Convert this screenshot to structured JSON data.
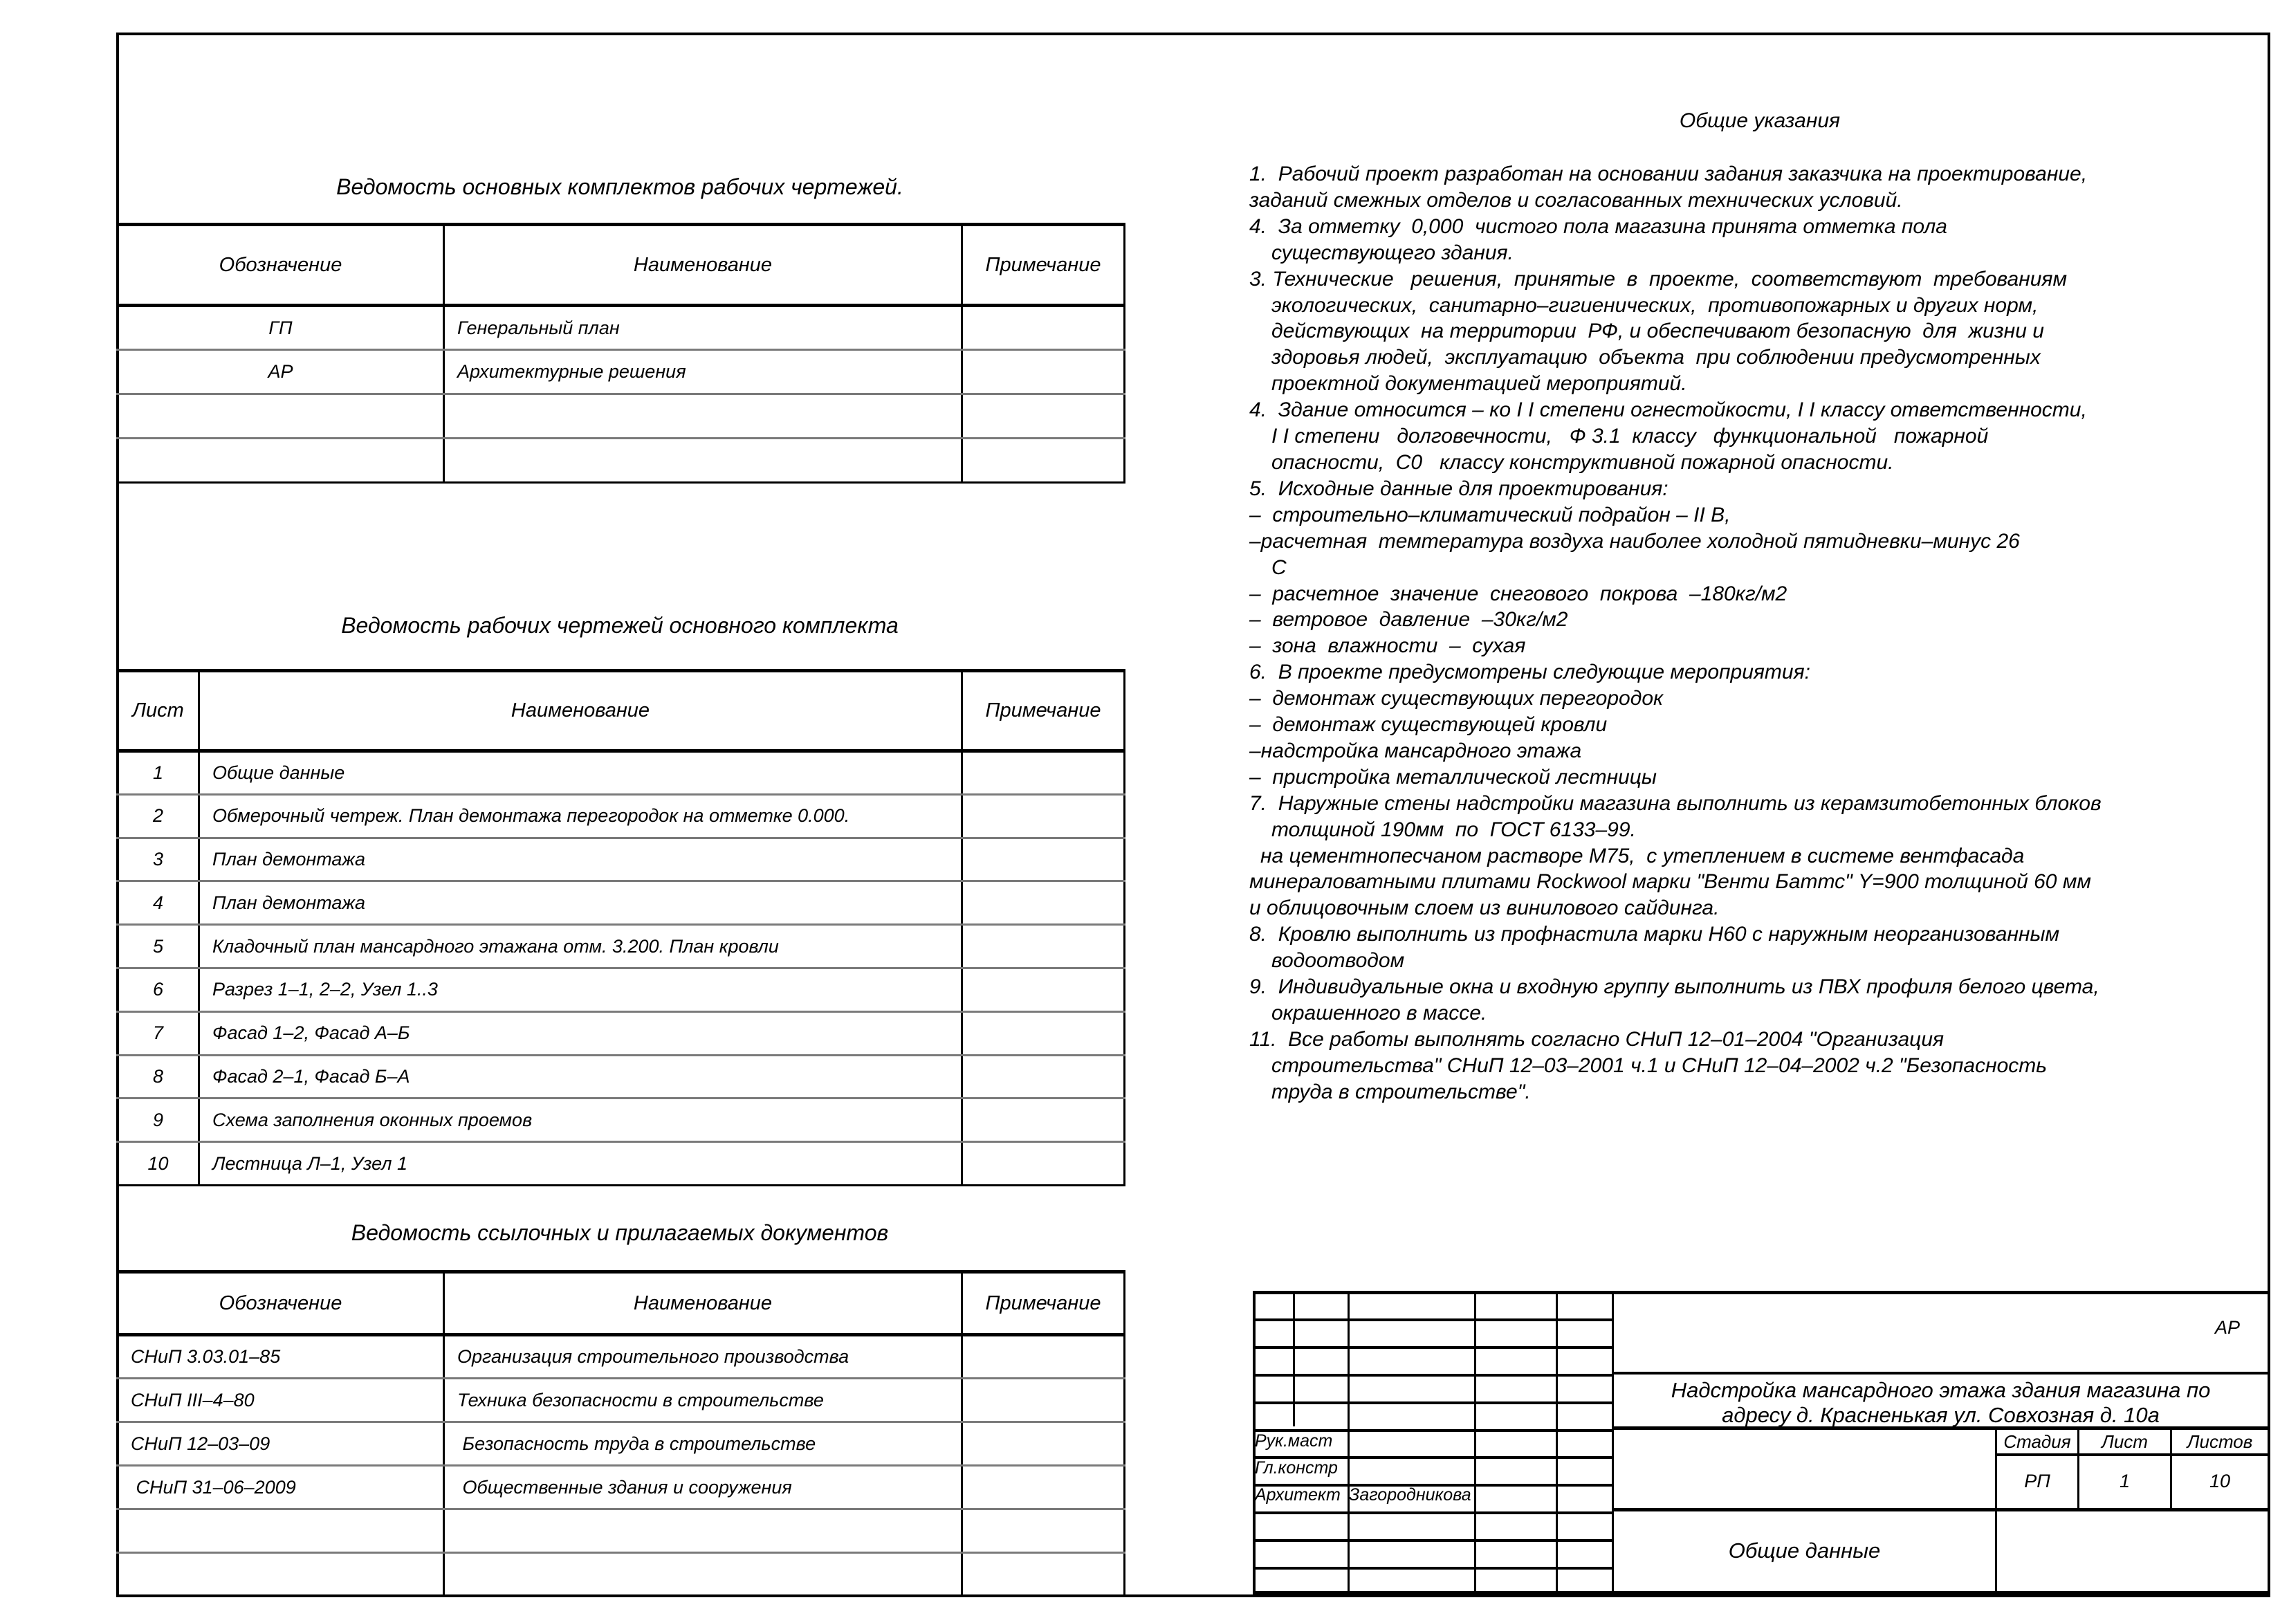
{
  "sheet_set_list": {
    "title": "Ведомость основных комплектов рабочих чертежей.",
    "headers": [
      "Обозначение",
      "Наименование",
      "Примечание"
    ],
    "rows": [
      [
        "ГП",
        "Генеральный план",
        ""
      ],
      [
        "АР",
        "Архитектурные решения",
        ""
      ],
      [
        "",
        "",
        ""
      ],
      [
        "",
        "",
        ""
      ]
    ]
  },
  "drawings_list": {
    "title": "Ведомость рабочих чертежей основного комплекта",
    "headers": [
      "Лист",
      "Наименование",
      "Примечание"
    ],
    "rows": [
      [
        "1",
        "Общие данные",
        ""
      ],
      [
        "2",
        "Обмерочный четреж. План демонтажа перегородок на отметке 0.000.",
        ""
      ],
      [
        "3",
        "План демонтажа",
        ""
      ],
      [
        "4",
        "План демонтажа",
        ""
      ],
      [
        "5",
        "Кладочный план мансардного этажана отм. 3.200. План кровли",
        ""
      ],
      [
        "6",
        "Разрез 1–1, 2–2, Узел 1..3",
        ""
      ],
      [
        "7",
        "Фасад 1–2, Фасад А–Б",
        ""
      ],
      [
        "8",
        "Фасад 2–1, Фасад Б–А",
        ""
      ],
      [
        "9",
        "Схема заполнения оконных проемов",
        ""
      ],
      [
        "10",
        "Лестница Л–1, Узел 1",
        ""
      ]
    ]
  },
  "reference_docs": {
    "title": "Ведомость ссылочных и прилагаемых документов",
    "headers": [
      "Обозначение",
      "Наименование",
      "Примечание"
    ],
    "rows": [
      [
        "СНиП 3.03.01–85",
        "Организация строительного производства",
        ""
      ],
      [
        "СНиП III–4–80",
        "Техника безопасности в строительстве",
        ""
      ],
      [
        "СНиП 12–03–09",
        " Безопасность труда в строительстве",
        ""
      ],
      [
        " СНиП 31–06–2009",
        " Общественные здания и сооружения",
        ""
      ],
      [
        "",
        "",
        ""
      ],
      [
        "",
        "",
        ""
      ]
    ]
  },
  "general_notes": {
    "title": "Общие указания",
    "lines": [
      {
        "text": "1.  Рабочий проект разработан на основании задания заказчика на проектирование,",
        "indent": 0
      },
      {
        "text": "заданий смежных отделов и согласованных технических условий.",
        "indent": 0
      },
      {
        "text": "4.  За отметку  0,000  чистого пола магазина принята отметка пола",
        "indent": 0
      },
      {
        "text": "существующего здания.",
        "indent": 1
      },
      {
        "text": "3. Технические   решения,  принятые  в  проекте,  соответствуют  требованиям",
        "indent": 0
      },
      {
        "text": "экологических,  санитарно–гигиенических,  противопожарных и других норм,",
        "indent": 1
      },
      {
        "text": "действующих  на территории  РФ, и обеспечивают безопасную  для  жизни и",
        "indent": 1
      },
      {
        "text": "здоровья людей,  эксплуатацию  объекта  при соблюдении предусмотренных",
        "indent": 1
      },
      {
        "text": "проектной документацией мероприятий.",
        "indent": 1
      },
      {
        "text": "4.  Здание относится – ко I I степени огнестойкости, I I классу ответственности,",
        "indent": 0
      },
      {
        "text": "I I степени   долговечности,   Ф 3.1  классу   функциональной   пожарной",
        "indent": 1
      },
      {
        "text": "опасности,  С0   классу конструктивной пожарной опасности.",
        "indent": 1
      },
      {
        "text": "5.  Исходные данные для проектирования:",
        "indent": 0
      },
      {
        "text": "–  строительно–климатический подрайон – II В,",
        "indent": 0
      },
      {
        "text": "–расчетная  темтература воздуха наиболее холодной пятидневки–минус 26",
        "indent": 0
      },
      {
        "text": "С",
        "indent": 1
      },
      {
        "text": "–  расчетное  значение  снегового  покрова  –180кг/м2",
        "indent": 0
      },
      {
        "text": "–  ветровое  давление  –30кг/м2",
        "indent": 0
      },
      {
        "text": "–  зона  влажности  –  сухая",
        "indent": 0
      },
      {
        "text": "6.  В проекте предусмотрены следующие мероприятия:",
        "indent": 0
      },
      {
        "text": "–  демонтаж существующих перегородок",
        "indent": 0
      },
      {
        "text": "–  демонтаж существующей кровли",
        "indent": 0
      },
      {
        "text": "–надстройка мансардного этажа",
        "indent": 0
      },
      {
        "text": "–  пристройка металлической лестницы",
        "indent": 0
      },
      {
        "text": "7.  Наружные стены надстройки магазина выполнить из керамзитобетонных блоков",
        "indent": 0
      },
      {
        "text": "толщиной 190мм  по  ГОСТ 6133–99.",
        "indent": 1
      },
      {
        "text": "на цементнопесчаном растворе М75,  с утеплением в системе вентфасада",
        "indent": 2
      },
      {
        "text": "минераловатными плитами Rockwool марки \"Венти Баттс\" Y=900 толщиной 60 мм",
        "indent": 0
      },
      {
        "text": "и облицовочным слоем из винилового сайдинга.",
        "indent": 0
      },
      {
        "text": "8.  Кровлю выполнить из профнастила марки Н60 с наружным неорганизованным",
        "indent": 0
      },
      {
        "text": "водоотводом",
        "indent": 1
      },
      {
        "text": "9.  Индивидуальные окна и входную группу выполнить из ПВХ профиля белого цвета,",
        "indent": 0
      },
      {
        "text": "окрашенного в массе.",
        "indent": 1
      },
      {
        "text": "11.  Все работы выполнять согласно СНиП 12–01–2004 \"Организация",
        "indent": 0
      },
      {
        "text": "строительства\" СНиП 12–03–2001 ч.1 и СНиП 12–04–2002 ч.2 \"Безопасность",
        "indent": 1
      },
      {
        "text": "труда в строительстве\".",
        "indent": 1
      }
    ]
  },
  "title_block": {
    "code": "АР",
    "project": "Надстройка мансардного этажа здания магазина по",
    "address": "адресу д. Красненькая ул. Совхозная д. 10а",
    "roles": [
      "Рук.маст",
      "Гл.констр",
      "Архитект"
    ],
    "architect_name": "Загородникова",
    "stage_label": "Стадия",
    "sheet_label": "Лист",
    "sheets_label": "Листов",
    "stage": "РП",
    "sheet": "1",
    "sheets": "10",
    "sheet_title": "Общие данные"
  }
}
